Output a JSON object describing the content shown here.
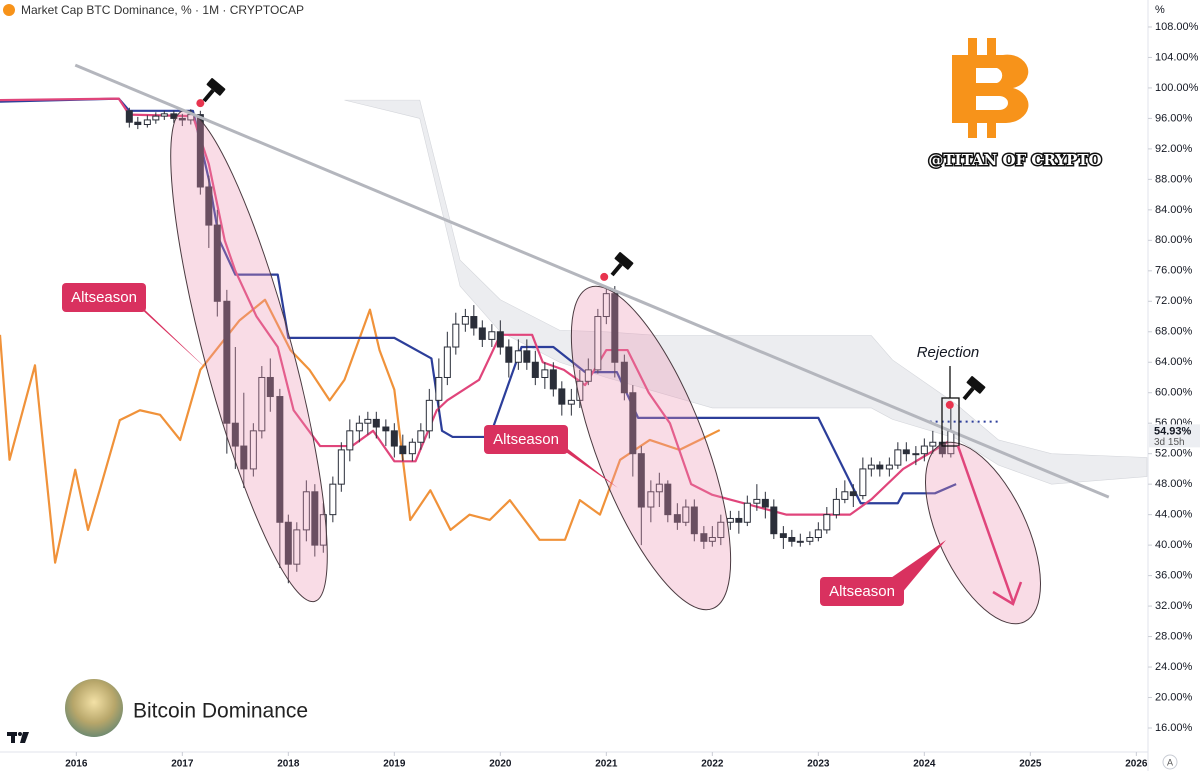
{
  "chart_data": {
    "type": "candlestick",
    "title": "Market Cap BTC Dominance, % · 1M · CRYPTOCAP",
    "axis_unit": "%",
    "xlim": [
      2015.28,
      2026.11
    ],
    "xticks": [
      2016,
      2017,
      2018,
      2019,
      2020,
      2021,
      2022,
      2023,
      2024,
      2025,
      2026
    ],
    "ylim": [
      12.85,
      111.54
    ],
    "yticks": [
      {
        "value": 16,
        "label": "16.00%"
      },
      {
        "value": 20,
        "label": "20.00%"
      },
      {
        "value": 24,
        "label": "24.00%"
      },
      {
        "value": 28,
        "label": "28.00%"
      },
      {
        "value": 32,
        "label": "32.00%"
      },
      {
        "value": 36,
        "label": "36.00%"
      },
      {
        "value": 40,
        "label": "40.00%"
      },
      {
        "value": 44,
        "label": "44.00%"
      },
      {
        "value": 48,
        "label": "48.00%"
      },
      {
        "value": 52,
        "label": "52.00%"
      },
      {
        "value": 56,
        "label": "56.00%"
      },
      {
        "value": 60,
        "label": "60.00%"
      },
      {
        "value": 64,
        "label": "64.00%"
      },
      {
        "value": 68,
        "label": "68.00%"
      },
      {
        "value": 72,
        "label": "72.00%"
      },
      {
        "value": 76,
        "label": "76.00%"
      },
      {
        "value": 80,
        "label": "80.00%"
      },
      {
        "value": 84,
        "label": "84.00%"
      },
      {
        "value": 88,
        "label": "88.00%"
      },
      {
        "value": 92,
        "label": "92.00%"
      },
      {
        "value": 96,
        "label": "96.00%"
      },
      {
        "value": 100,
        "label": "100.00%"
      },
      {
        "value": 104,
        "label": "104.00%"
      },
      {
        "value": 108,
        "label": "108.00%"
      }
    ],
    "up_color": "#ffffff",
    "down_color": "#2a2e39",
    "x": [
      2016.5,
      2016.58,
      2016.67,
      2016.75,
      2016.83,
      2016.92,
      2017,
      2017.08,
      2017.17,
      2017.25,
      2017.33,
      2017.42,
      2017.5,
      2017.58,
      2017.67,
      2017.75,
      2017.83,
      2017.92,
      2018,
      2018.08,
      2018.17,
      2018.25,
      2018.33,
      2018.42,
      2018.5,
      2018.58,
      2018.67,
      2018.75,
      2018.83,
      2018.92,
      2019,
      2019.08,
      2019.17,
      2019.25,
      2019.33,
      2019.42,
      2019.5,
      2019.58,
      2019.67,
      2019.75,
      2019.83,
      2019.92,
      2020,
      2020.08,
      2020.17,
      2020.25,
      2020.33,
      2020.42,
      2020.5,
      2020.58,
      2020.67,
      2020.75,
      2020.83,
      2020.92,
      2021,
      2021.08,
      2021.17,
      2021.25,
      2021.33,
      2021.42,
      2021.5,
      2021.58,
      2021.67,
      2021.75,
      2021.83,
      2021.92,
      2022,
      2022.08,
      2022.17,
      2022.25,
      2022.33,
      2022.42,
      2022.5,
      2022.58,
      2022.67,
      2022.75,
      2022.83,
      2022.92,
      2023,
      2023.08,
      2023.17,
      2023.25,
      2023.33,
      2023.42,
      2023.5,
      2023.58,
      2023.67,
      2023.75,
      2023.83,
      2023.92,
      2024,
      2024.08,
      2024.17,
      2024.25
    ],
    "open": [
      97,
      95.5,
      95.2,
      95.8,
      96.3,
      96.6,
      96,
      95.8,
      96.5,
      87,
      82,
      72,
      56,
      53,
      50,
      55,
      62,
      59.5,
      43,
      37.5,
      42,
      47,
      40,
      44,
      48,
      52.5,
      55,
      56,
      56.5,
      55.5,
      55,
      53,
      52,
      53.5,
      55,
      59,
      62,
      66,
      69,
      70,
      68.5,
      67,
      68,
      66,
      64,
      65.5,
      64,
      62,
      63,
      60.5,
      58.5,
      59,
      61.5,
      63,
      70,
      73,
      64,
      60,
      52,
      45,
      47,
      48,
      44,
      43,
      45,
      41.5,
      40.5,
      41,
      43,
      43.5,
      43,
      45.5,
      46,
      45,
      41.5,
      41,
      40.5,
      40.5,
      41,
      42,
      44,
      46,
      47,
      46.5,
      50,
      50.5,
      50,
      50.5,
      52.5,
      52,
      52,
      53,
      53.5,
      52
    ],
    "high": [
      97.4,
      96.2,
      96.4,
      96.8,
      97,
      97,
      96.6,
      97.2,
      97,
      88.5,
      84,
      73.5,
      66,
      60,
      56,
      63.5,
      64.5,
      60.5,
      44,
      43,
      48.5,
      48,
      45.5,
      49,
      53.5,
      56.5,
      57,
      57.5,
      57.5,
      56.5,
      56,
      54.5,
      54,
      56,
      60.5,
      64.5,
      68,
      70.5,
      71,
      71.5,
      69.5,
      69,
      69.5,
      67,
      67,
      67,
      65.5,
      64,
      64,
      61.5,
      60.5,
      63,
      64.5,
      71,
      74,
      74,
      65,
      61,
      53,
      48.5,
      49.5,
      48.5,
      45.5,
      46,
      46,
      42.5,
      42.5,
      44,
      44.5,
      44.5,
      46.5,
      48,
      47,
      46,
      42.5,
      42,
      41.5,
      41.8,
      43,
      45,
      47.5,
      48.5,
      48,
      51.5,
      51.5,
      51,
      51.5,
      53.5,
      53.5,
      53,
      54,
      55,
      55,
      58.5
    ],
    "low": [
      94.8,
      94.6,
      94.8,
      95.3,
      95.8,
      95.4,
      95,
      95.2,
      86,
      79,
      70,
      52,
      50,
      47.5,
      49,
      54,
      57.5,
      37,
      35,
      36.5,
      40.5,
      38.5,
      39,
      43,
      47,
      51,
      53.5,
      54.5,
      54,
      53,
      51.5,
      51,
      51,
      52.5,
      54,
      57.5,
      61,
      65,
      68,
      67.5,
      66,
      66,
      65,
      62,
      63,
      63,
      61,
      60.5,
      59.5,
      57,
      57,
      58,
      61,
      62.5,
      69,
      62,
      59,
      49,
      40,
      43,
      45,
      43,
      42,
      42.5,
      40.5,
      39.5,
      39.8,
      40,
      42,
      41.5,
      42.5,
      44.5,
      43.5,
      40.8,
      39.5,
      39.8,
      39.8,
      40,
      40.5,
      41.5,
      43.5,
      45.5,
      45,
      46,
      49,
      49,
      49,
      50,
      51,
      50.5,
      51,
      52,
      51.5,
      51.5
    ],
    "close": [
      95.5,
      95.2,
      95.8,
      96.3,
      96.6,
      96,
      95.8,
      96.5,
      87,
      82,
      72,
      56,
      53,
      50,
      55,
      62,
      59.5,
      43,
      37.5,
      42,
      47,
      40,
      44,
      48,
      52.5,
      55,
      56,
      56.5,
      55.5,
      55,
      53,
      52,
      53.5,
      55,
      59,
      62,
      66,
      69,
      70,
      68.5,
      67,
      68,
      66,
      64,
      65.5,
      64,
      62,
      63,
      60.5,
      58.5,
      59,
      61.5,
      63,
      70,
      73,
      64,
      60,
      52,
      45,
      47,
      48,
      44,
      43,
      45,
      41.5,
      40.5,
      41,
      43,
      43.5,
      43,
      45.5,
      46,
      45,
      41.5,
      41,
      40.5,
      40.5,
      41,
      42,
      44,
      46,
      47,
      46.5,
      50,
      50.5,
      50,
      50.5,
      52.5,
      52,
      52,
      53,
      53.5,
      52,
      54.93
    ],
    "cloud": {
      "color": "#e4e6ea",
      "x": [
        2018.53,
        2019.24,
        2019.62,
        2020,
        2020.56,
        2021,
        2021.5,
        2022,
        2023,
        2023.5,
        2023.7,
        2024.3,
        2024.7,
        2025.2,
        2026.1
      ],
      "upper": [
        98.4,
        98.4,
        77.4,
        72.2,
        68.2,
        68,
        67.5,
        67.5,
        67.5,
        67.5,
        64.3,
        58.5,
        53.8,
        52,
        51.5
      ],
      "lower": [
        98.4,
        96,
        74,
        68,
        64,
        62,
        60,
        58,
        58,
        58,
        56.5,
        54,
        50.5,
        48,
        49
      ]
    },
    "lines": [
      {
        "color": "#f0923a",
        "x": [
          2015.28,
          2015.37,
          2015.61,
          2015.8,
          2015.99,
          2016.11,
          2016.22,
          2016.41,
          2016.6,
          2016.79,
          2016.98,
          2017.17,
          2017.54,
          2017.78,
          2018.02,
          2018.2,
          2018.39,
          2018.53,
          2018.77,
          2018.86,
          2019,
          2019.15,
          2019.34,
          2019.53,
          2019.71,
          2019.9,
          2020.09,
          2020.37,
          2020.61,
          2020.75,
          2020.94,
          2021.13,
          2021.41,
          2021.69,
          2021.88,
          2022.07
        ],
        "values": [
          67.6,
          51.2,
          63.6,
          37.7,
          49.9,
          42,
          47.2,
          56.4,
          57.7,
          57.1,
          53.8,
          63,
          69.5,
          72.2,
          65.6,
          63,
          59,
          61.7,
          70.9,
          65.6,
          60.4,
          43.3,
          47.2,
          42,
          44,
          43.3,
          45.9,
          40.7,
          40.7,
          45.9,
          44,
          51.2,
          53.8,
          52.5,
          53.8,
          55.1
        ]
      },
      {
        "color": "#2c3e9a",
        "x": [
          2015.28,
          2016.4,
          2016.5,
          2017.1,
          2017.25,
          2017.35,
          2017.5,
          2017.9,
          2018,
          2019,
          2019.35,
          2019.45,
          2019.55,
          2019.9,
          2020.2,
          2020.5,
          2020.8,
          2021.1,
          2021.3,
          2023,
          2023.4,
          2023.75,
          2023.8,
          2024.1,
          2024.3
        ],
        "values": [
          98.2,
          98.6,
          97,
          97,
          88,
          80,
          75.5,
          75.5,
          67.2,
          67.2,
          64.5,
          55,
          54.2,
          54.2,
          66,
          66,
          62.7,
          62.7,
          56.7,
          56.7,
          45.5,
          45.5,
          46.8,
          46.8,
          48
        ]
      },
      {
        "color": "#e0457b",
        "x": [
          2015.28,
          2016.4,
          2016.5,
          2017.1,
          2017.25,
          2017.4,
          2017.5,
          2017.7,
          2017.9,
          2018.05,
          2018.3,
          2018.6,
          2018.8,
          2019,
          2019.2,
          2019.4,
          2019.5,
          2019.8,
          2020,
          2020.3,
          2020.4,
          2020.6,
          2020.8,
          2021,
          2021.2,
          2021.4,
          2021.6,
          2021.8,
          2022,
          2022.7,
          2023.3,
          2023.5,
          2023.8,
          2024.1,
          2024.25
        ],
        "values": [
          98.4,
          98.6,
          96.5,
          96.3,
          90,
          80,
          76,
          70,
          66,
          57.7,
          53,
          53,
          55,
          51,
          51,
          57.7,
          59,
          61.7,
          67.6,
          67.6,
          64,
          63,
          61,
          65.6,
          65.6,
          60,
          56,
          48,
          46.6,
          44,
          44,
          46,
          50,
          52.5,
          53.8
        ]
      },
      {
        "color": "#b4b6bd",
        "x": [
          2015.99,
          2025.74
        ],
        "values": [
          103,
          46.3
        ]
      },
      {
        "color": "#2c3e9a",
        "dash": true,
        "x": [
          2024.05,
          2024.7
        ],
        "values": [
          56.2,
          56.2
        ]
      }
    ],
    "markers": {
      "color": "#e8344e",
      "x": [
        2017.17,
        2020.98,
        2024.24
      ],
      "values": [
        98,
        75.2,
        58.4
      ]
    },
    "price_tag": {
      "value": 54.93,
      "label": "54.93%",
      "countdown": "3d 15h"
    },
    "annotations": [
      "Altseason",
      "Altseason",
      "Altseason",
      "Rejection"
    ],
    "watermark": "@TITAN OF CRYPTO",
    "caption": "Bitcoin Dominance",
    "scale_button": "A"
  }
}
